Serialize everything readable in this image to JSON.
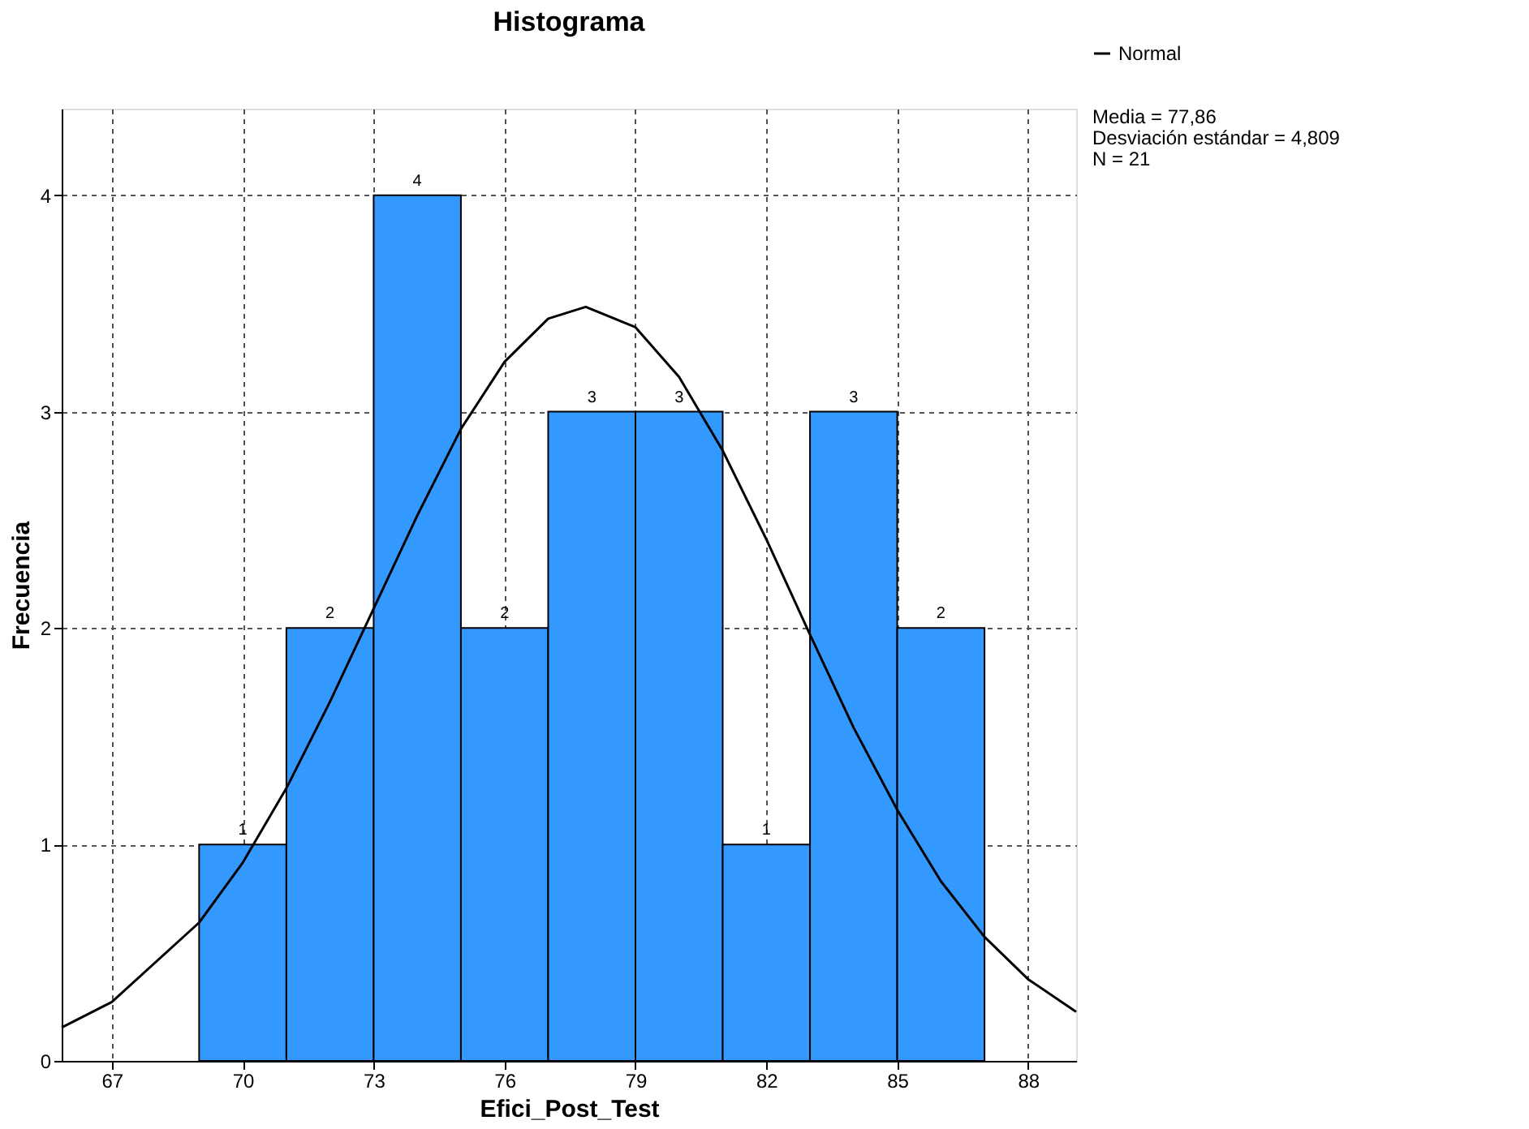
{
  "chart_data": {
    "type": "histogram",
    "title": "Histograma",
    "xlabel": "Efici_Post_Test",
    "ylabel": "Frecuencia",
    "bins": [
      69,
      71,
      73,
      75,
      77,
      79,
      81,
      83,
      85,
      87
    ],
    "values": [
      1,
      2,
      4,
      2,
      3,
      3,
      1,
      3,
      2
    ],
    "color": "#3399ff",
    "value_labels": [
      "1",
      "2",
      "4",
      "2",
      "3",
      "3",
      "1",
      "3",
      "2"
    ],
    "series": [
      {
        "name": "Normal",
        "type": "line",
        "color": "#000000",
        "x": [
          65.85,
          67,
          69,
          70,
          71,
          72,
          73,
          74,
          75,
          76,
          77,
          77.86,
          79,
          80,
          81,
          82,
          83,
          84,
          85,
          86,
          87,
          88,
          89.1
        ],
        "values": [
          0.154,
          0.272,
          0.639,
          0.916,
          1.26,
          1.66,
          2.09,
          2.52,
          2.92,
          3.23,
          3.43,
          3.484,
          3.39,
          3.16,
          2.82,
          2.41,
          1.97,
          1.54,
          1.16,
          0.83,
          0.573,
          0.377,
          0.227
        ]
      }
    ],
    "annotations": [
      "Media = 77,86",
      "Desviación estándar = 4,809",
      "N = 21"
    ],
    "xlim": [
      65.85,
      89.1
    ],
    "ylim": [
      0,
      4.4
    ],
    "xticks": [
      67,
      70,
      73,
      76,
      79,
      82,
      85,
      88
    ],
    "yticks": [
      0,
      1,
      2,
      3,
      4
    ],
    "grid": true,
    "line_style": "solid",
    "legend": "top right",
    "marker": "none"
  }
}
